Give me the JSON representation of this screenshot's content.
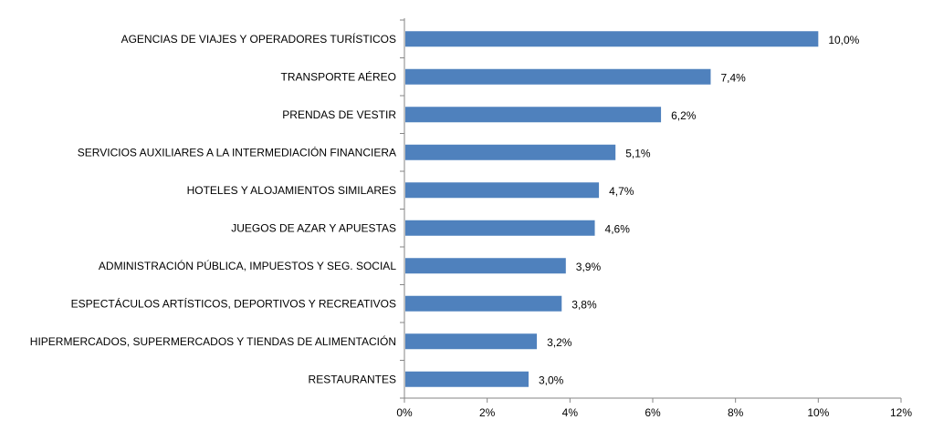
{
  "chart_data": {
    "type": "bar",
    "orientation": "horizontal",
    "categories": [
      "AGENCIAS DE VIAJES Y OPERADORES TURÍSTICOS",
      "TRANSPORTE AÉREO",
      "PRENDAS DE VESTIR",
      "SERVICIOS AUXILIARES A LA INTERMEDIACIÓN FINANCIERA",
      "HOTELES  Y ALOJAMIENTOS SIMILARES",
      "JUEGOS DE AZAR Y APUESTAS",
      "ADMINISTRACIÓN PÚBLICA, IMPUESTOS Y SEG. SOCIAL",
      "ESPECTÁCULOS ARTÍSTICOS, DEPORTIVOS Y RECREATIVOS",
      "HIPERMERCADOS, SUPERMERCADOS Y TIENDAS DE ALIMENTACIÓN",
      "RESTAURANTES"
    ],
    "values": [
      10.0,
      7.4,
      6.2,
      5.1,
      4.7,
      4.6,
      3.9,
      3.8,
      3.2,
      3.0
    ],
    "data_labels": [
      "10,0%",
      "7,4%",
      "6,2%",
      "5,1%",
      "4,7%",
      "4,6%",
      "3,9%",
      "3,8%",
      "3,2%",
      "3,0%"
    ],
    "xlim": [
      0,
      12
    ],
    "xticks": [
      0,
      2,
      4,
      6,
      8,
      10,
      12
    ],
    "xtick_labels": [
      "0%",
      "2%",
      "4%",
      "6%",
      "8%",
      "10%",
      "12%"
    ],
    "title": "",
    "xlabel": "",
    "ylabel": "",
    "grid": false,
    "legend": false,
    "bar_color": "#4f81bd",
    "axis_color": "#868686"
  }
}
